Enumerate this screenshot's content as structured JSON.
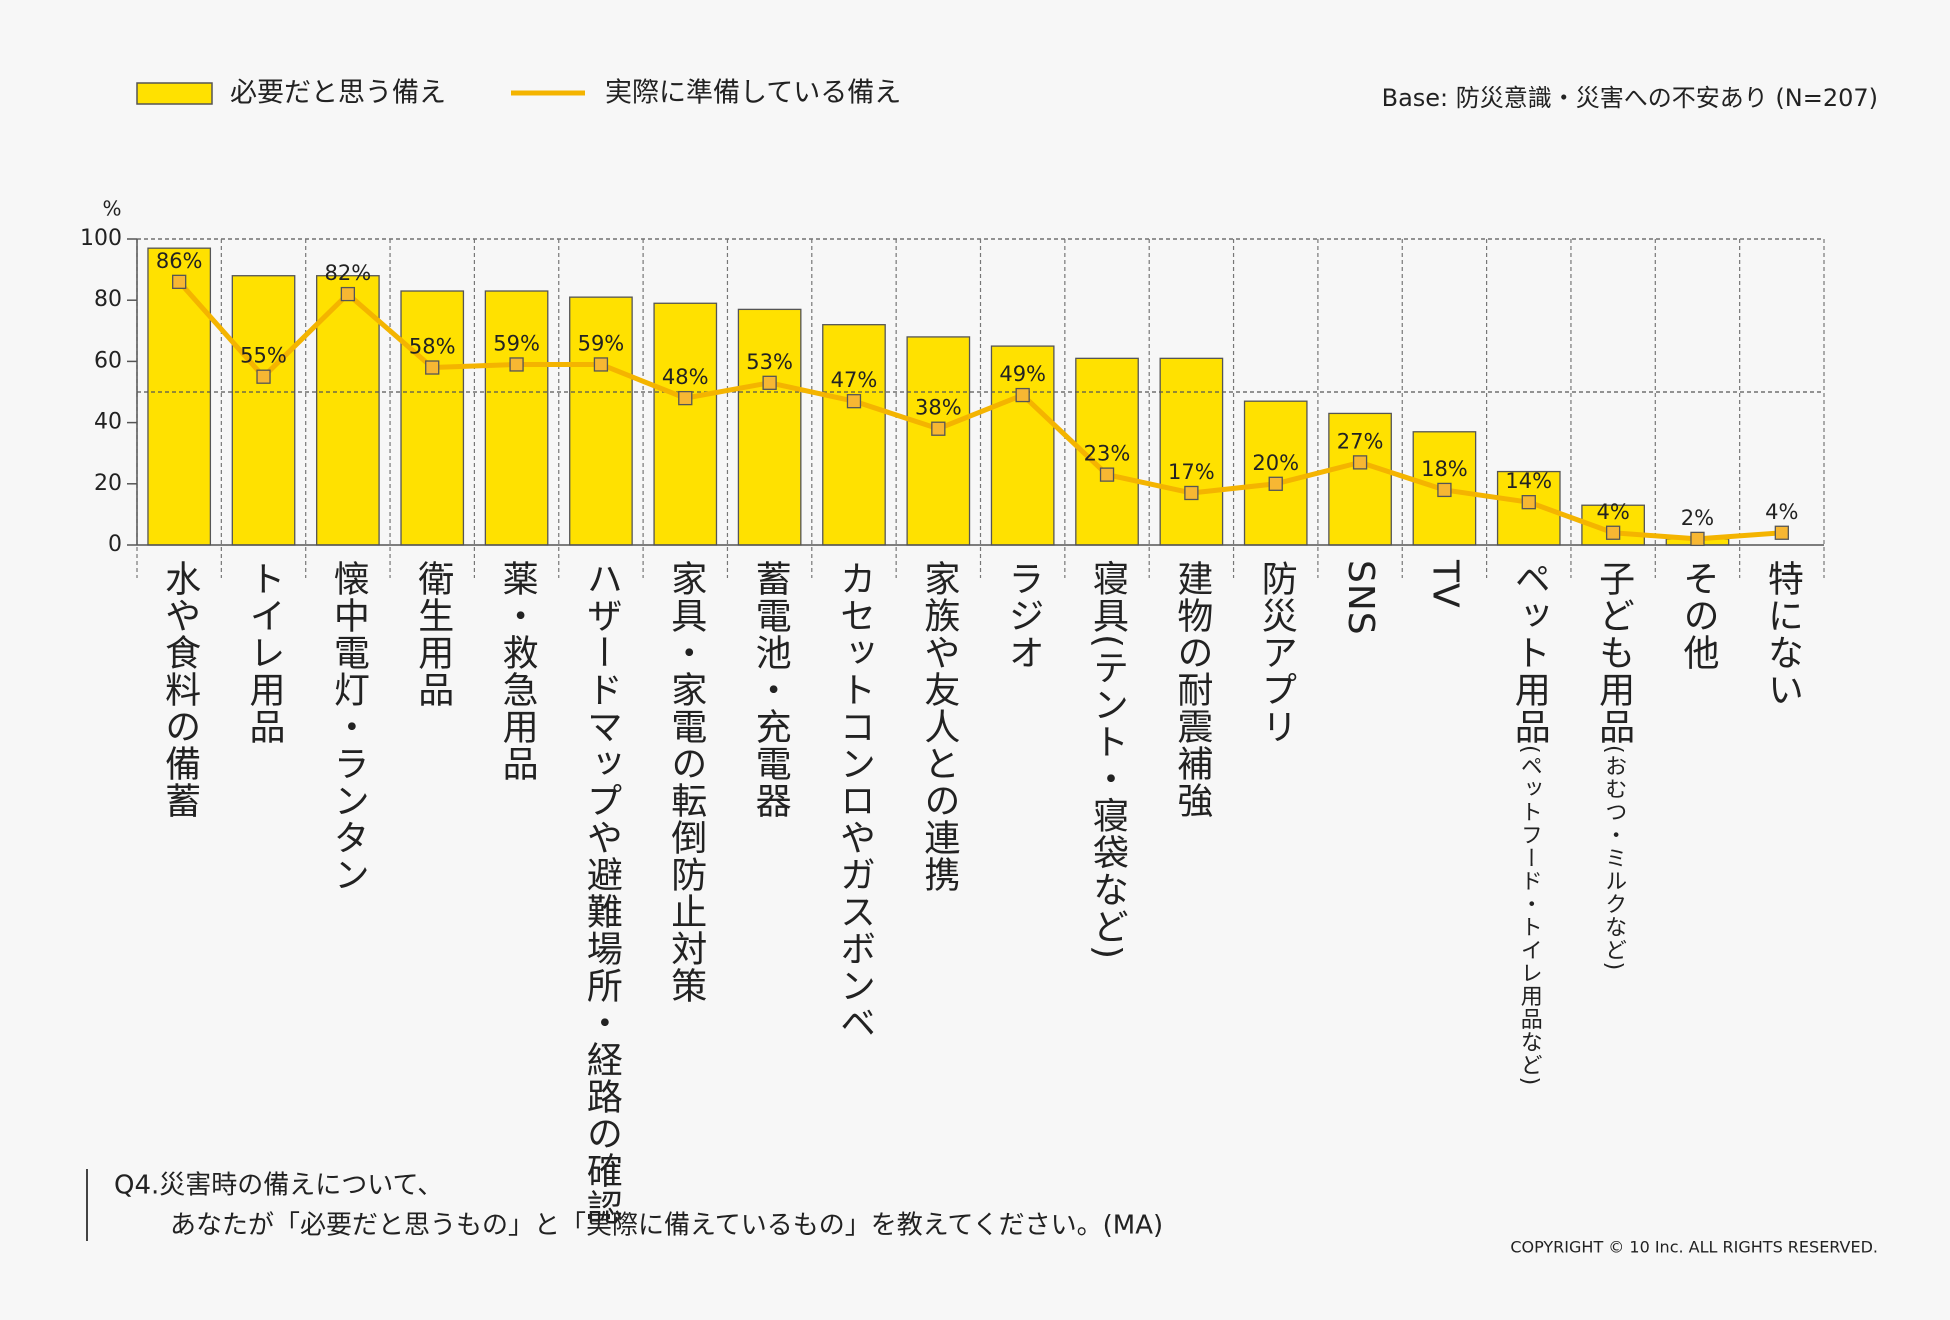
{
  "chart_data": {
    "type": "bar-line",
    "legend": {
      "bar": "必要だと思う備え",
      "line": "実際に準備している備え"
    },
    "base_note": "Base: 防災意識・災害への不安あり (N=207)",
    "y_unit": "%",
    "categories": [
      "水や食料の備蓄",
      "トイレ用品",
      "懐中電灯・ランタン",
      "衛生用品",
      "薬・救急用品",
      "ハザードマップや避難場所・経路の確認",
      "家具・家電の転倒防止対策",
      "蓄電池・充電器",
      "カセットコンロやガスボンベ",
      "家族や友人との連携",
      "ラジオ",
      "寝具(テント・寝袋など)",
      "建物の耐震補強",
      "防災アプリ",
      "SNS",
      "TV",
      "ペット用品",
      "子ども用品",
      "その他",
      "特にない"
    ],
    "category_notes": [
      null,
      null,
      null,
      null,
      null,
      null,
      null,
      null,
      null,
      null,
      null,
      null,
      null,
      null,
      null,
      null,
      "(ペットフード・トイレ用品など)",
      "(おむつ・ミルクなど)",
      null,
      null
    ],
    "series": [
      {
        "name": "必要だと思う備え",
        "color": "#ffe100",
        "kind": "bar",
        "values": [
          97,
          88,
          88,
          83,
          83,
          81,
          79,
          77,
          72,
          68,
          65,
          61,
          61,
          47,
          43,
          37,
          24,
          13,
          2,
          0
        ]
      },
      {
        "name": "実際に準備している備え",
        "color": "#f4b400",
        "kind": "line",
        "values": [
          86,
          55,
          82,
          58,
          59,
          59,
          48,
          53,
          47,
          38,
          49,
          23,
          17,
          20,
          27,
          18,
          14,
          4,
          2,
          4
        ],
        "value_labels": [
          "86%",
          "55%",
          "82%",
          "58%",
          "59%",
          "59%",
          "48%",
          "53%",
          "47%",
          "38%",
          "49%",
          "23%",
          "17%",
          "20%",
          "27%",
          "18%",
          "14%",
          "4%",
          "2%",
          "4%"
        ]
      }
    ],
    "ylim": [
      0,
      100
    ],
    "yticks": [
      0,
      20,
      40,
      60,
      80,
      100
    ],
    "reference_line": 50,
    "question": [
      "Q4.災害時の備えについて、",
      "あなたが「必要だと思うもの」と「実際に備えているもの」を教えてください。(MA)"
    ],
    "copyright": "COPYRIGHT © 10 Inc. ALL RIGHTS RESERVED."
  }
}
